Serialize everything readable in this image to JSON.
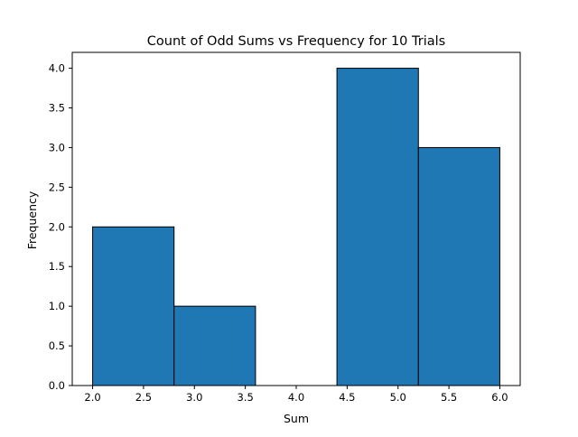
{
  "chart_data": {
    "type": "bar",
    "subtype": "histogram",
    "title": "Count of Odd Sums vs Frequency for 10 Trials",
    "xlabel": "Sum",
    "ylabel": "Frequency",
    "xlim": [
      1.8,
      6.2
    ],
    "ylim": [
      0,
      4.2
    ],
    "xticks": [
      2.0,
      2.5,
      3.0,
      3.5,
      4.0,
      4.5,
      5.0,
      5.5,
      6.0
    ],
    "xtick_labels": [
      "2.0",
      "2.5",
      "3.0",
      "3.5",
      "4.0",
      "4.5",
      "5.0",
      "5.5",
      "6.0"
    ],
    "yticks": [
      0.0,
      0.5,
      1.0,
      1.5,
      2.0,
      2.5,
      3.0,
      3.5,
      4.0
    ],
    "ytick_labels": [
      "0.0",
      "0.5",
      "1.0",
      "1.5",
      "2.0",
      "2.5",
      "3.0",
      "3.5",
      "4.0"
    ],
    "bins": [
      {
        "start": 2.0,
        "end": 2.8,
        "count": 2
      },
      {
        "start": 2.8,
        "end": 3.6,
        "count": 1
      },
      {
        "start": 3.6,
        "end": 4.4,
        "count": 0
      },
      {
        "start": 4.4,
        "end": 5.2,
        "count": 4
      },
      {
        "start": 5.2,
        "end": 6.0,
        "count": 3
      }
    ],
    "grid": false,
    "legend": "none",
    "colors": {
      "bar_fill": "#1f77b4",
      "bar_edge": "#000000",
      "axes": "#000000",
      "background": "#ffffff"
    }
  }
}
